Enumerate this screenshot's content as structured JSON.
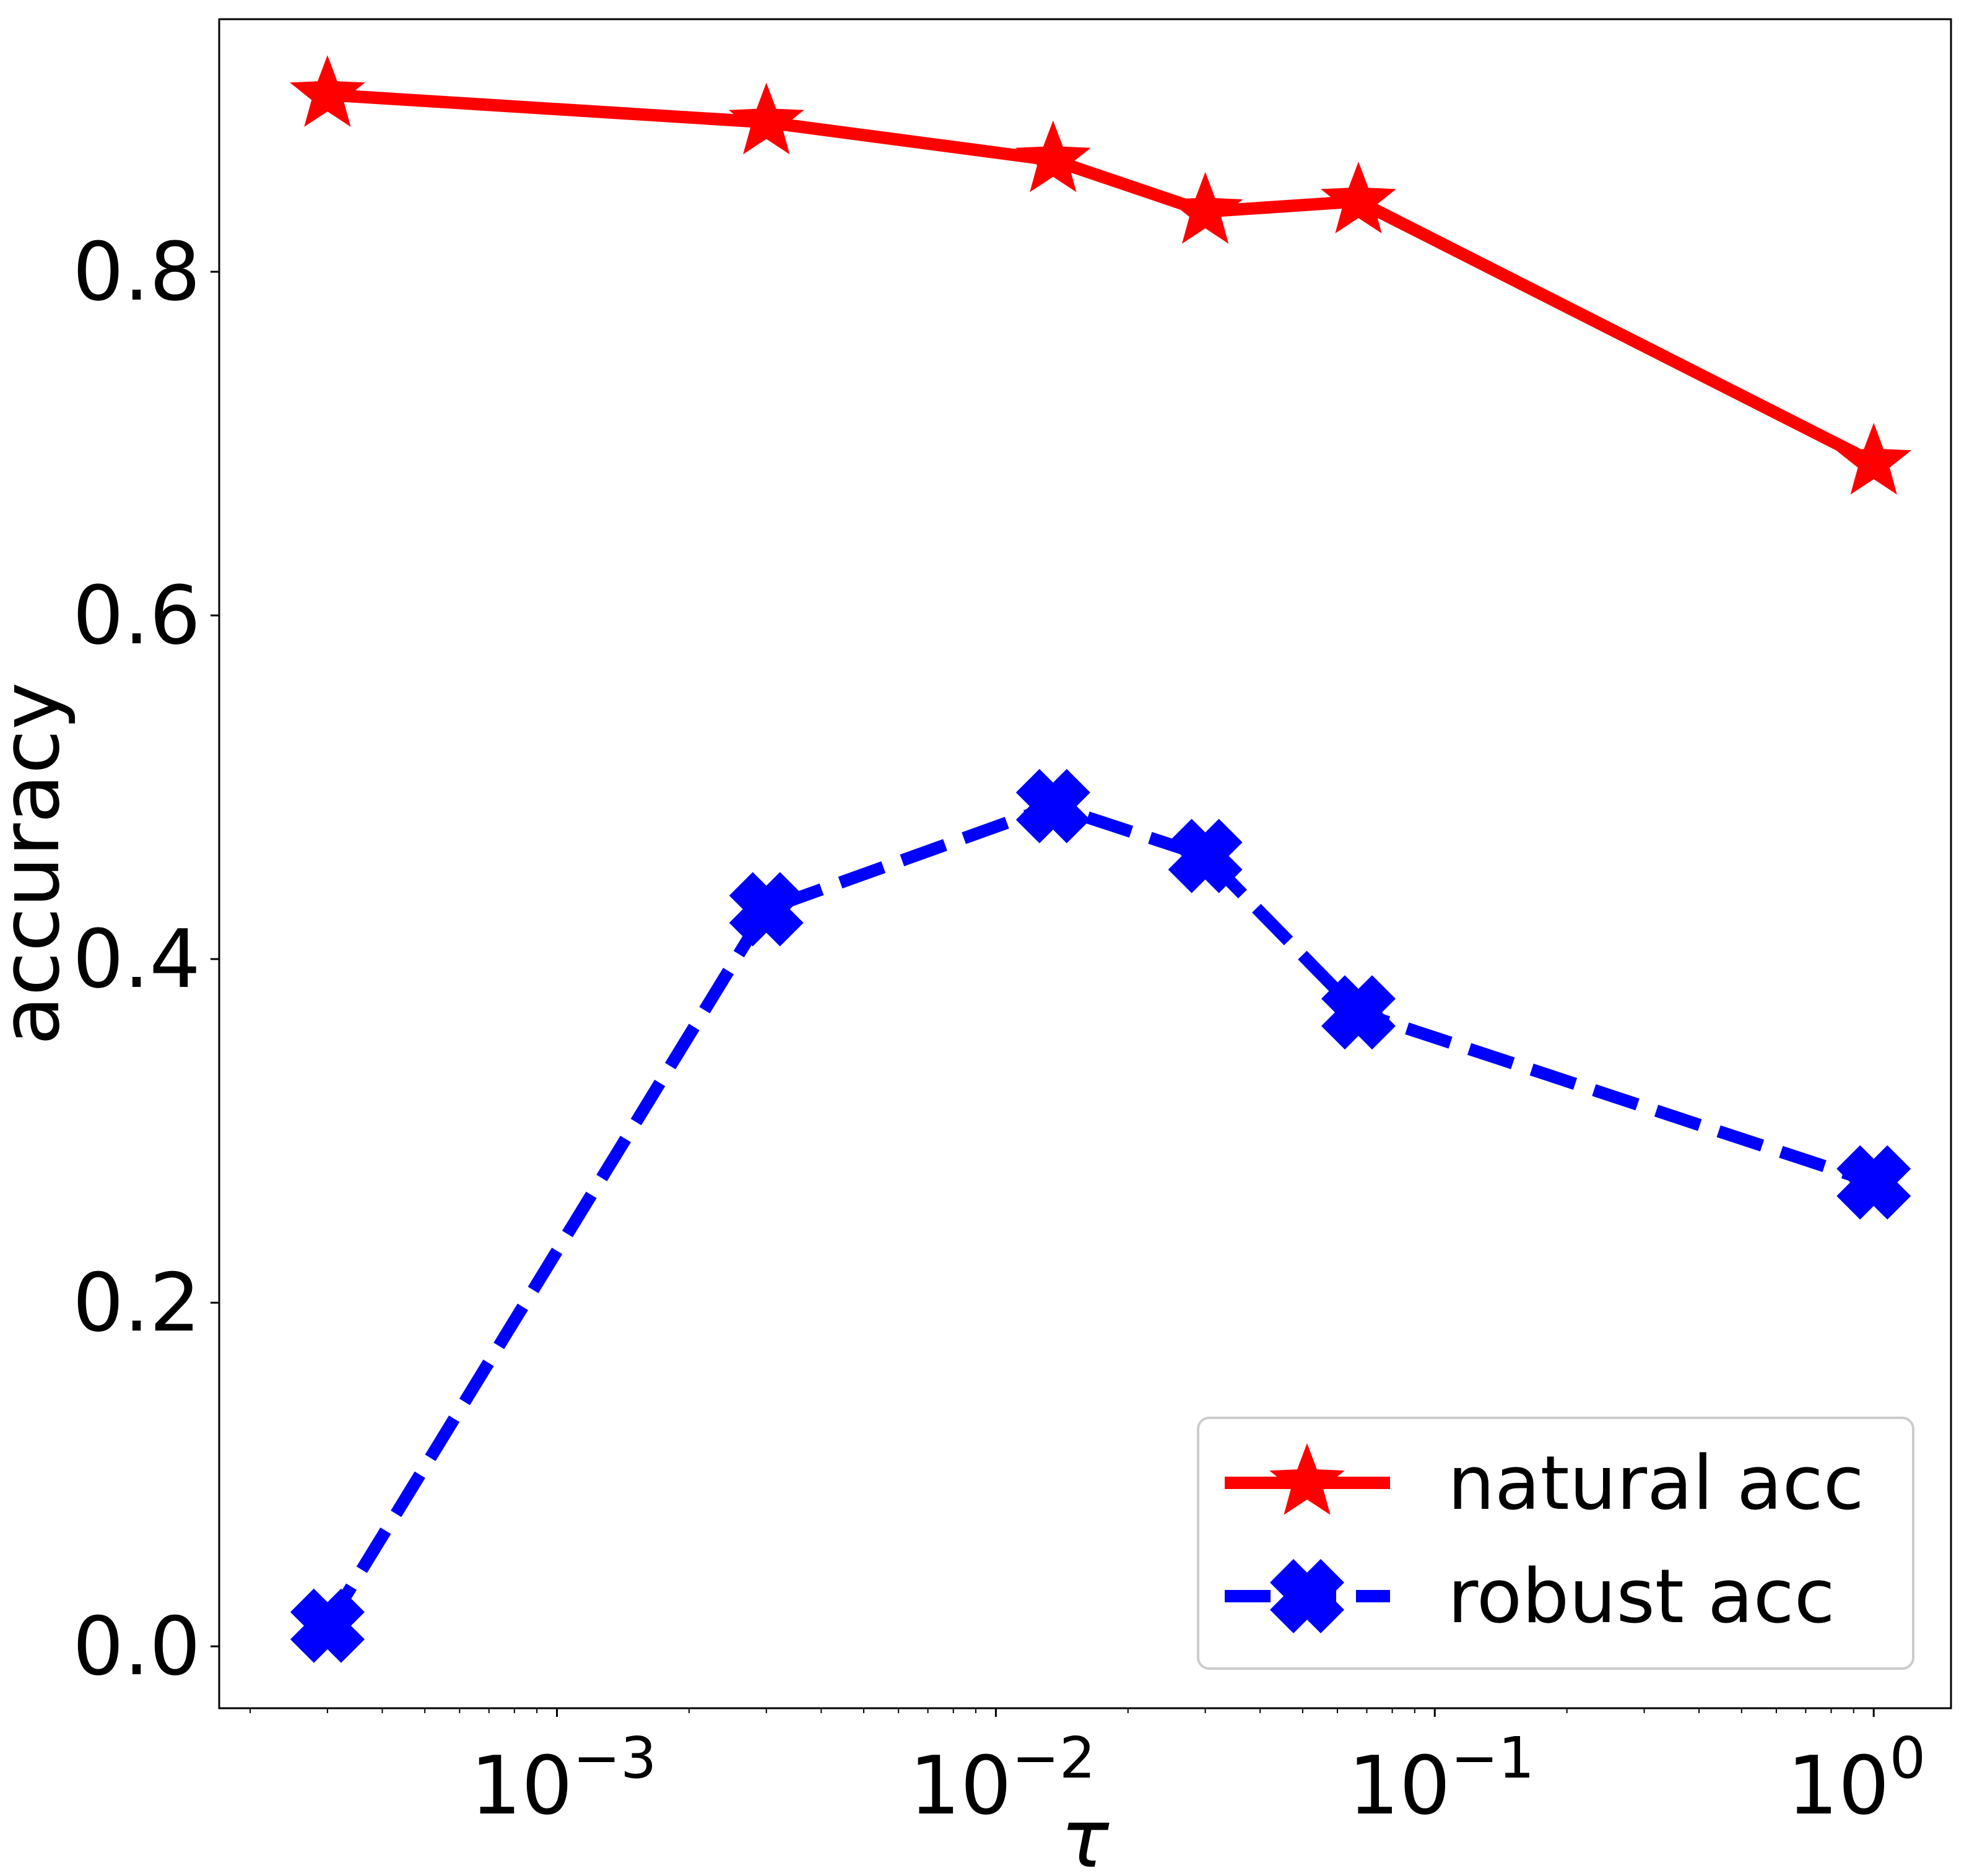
{
  "chart_data": {
    "type": "line",
    "xscale": "log",
    "xlabel": "τ",
    "ylabel": "accuracy",
    "xlim": [
      0.00017,
      1.5
    ],
    "ylim": [
      -0.036,
      0.947
    ],
    "xticks": [
      {
        "value": 0.001,
        "base": "10",
        "exp": "−3"
      },
      {
        "value": 0.01,
        "base": "10",
        "exp": "−2"
      },
      {
        "value": 0.1,
        "base": "10",
        "exp": "−1"
      },
      {
        "value": 1,
        "base": "10",
        "exp": "0"
      }
    ],
    "yticks": [
      {
        "value": 0.0,
        "label": "0.0"
      },
      {
        "value": 0.2,
        "label": "0.2"
      },
      {
        "value": 0.4,
        "label": "0.4"
      },
      {
        "value": 0.6,
        "label": "0.6"
      },
      {
        "value": 0.8,
        "label": "0.8"
      }
    ],
    "legend_position": "lower-right",
    "series": [
      {
        "name": "natural acc",
        "color": "#ff0000",
        "linestyle": "solid",
        "marker": "star",
        "x": [
          0.0003,
          0.003,
          0.0135,
          0.03,
          0.067,
          1.0
        ],
        "y": [
          0.903,
          0.887,
          0.865,
          0.835,
          0.841,
          0.689
        ]
      },
      {
        "name": "robust acc",
        "color": "#0000ff",
        "linestyle": "dashed",
        "marker": "x-filled",
        "x": [
          0.0003,
          0.003,
          0.0135,
          0.03,
          0.067,
          1.0
        ],
        "y": [
          0.012,
          0.429,
          0.489,
          0.46,
          0.369,
          0.27
        ]
      }
    ]
  }
}
